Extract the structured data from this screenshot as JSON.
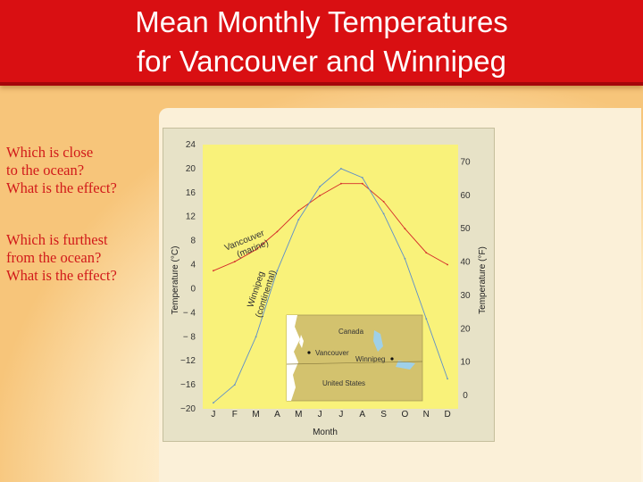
{
  "slide": {
    "title_line1": "Mean Monthly Temperatures",
    "title_line2": "for Vancouver and Winnipeg",
    "question1": [
      "Which is close",
      "to the ocean?",
      "What is the effect?"
    ],
    "question2": [
      "Which is furthest",
      "from the ocean?",
      "What is the effect?"
    ]
  },
  "colors": {
    "title_bg": "#d90f12",
    "question_text": "#d11a1a",
    "plot_bg": "#f9f27a",
    "vancouver": "#d42a2a",
    "winnipeg": "#5e8fca"
  },
  "chart_data": {
    "type": "line",
    "xlabel": "Month",
    "ylabel_left": "Temperature (°C)",
    "ylabel_right": "Temperature (°F)",
    "categories": [
      "J",
      "F",
      "M",
      "A",
      "M",
      "J",
      "J",
      "A",
      "S",
      "O",
      "N",
      "D"
    ],
    "ylim_c": [
      -20,
      24
    ],
    "yticks_c": [
      "24",
      "20",
      "16",
      "12",
      "8",
      "4",
      "0",
      "− 4",
      "− 8",
      "−12",
      "−16",
      "−20"
    ],
    "yticks_f": [
      "70",
      "60",
      "50",
      "40",
      "30",
      "20",
      "10",
      "0"
    ],
    "ytick_values_f": [
      70,
      60,
      50,
      40,
      30,
      20,
      10,
      0
    ],
    "grid": false,
    "series": [
      {
        "name": "Vancouver (marine)",
        "label_lines": [
          "Vancouver",
          "(marine)"
        ],
        "color": "#d42a2a",
        "values": [
          3.0,
          4.5,
          6.5,
          9.5,
          13.0,
          15.5,
          17.5,
          17.5,
          14.5,
          10.0,
          6.0,
          4.0
        ]
      },
      {
        "name": "Winnipeg (continental)",
        "label_lines": [
          "Winnipeg",
          "(continental)"
        ],
        "color": "#5e8fca",
        "values": [
          -19.0,
          -16.0,
          -8.0,
          3.0,
          11.5,
          17.0,
          20.0,
          18.5,
          12.5,
          5.0,
          -5.0,
          -15.0
        ]
      }
    ],
    "inset_map": {
      "labels": {
        "canada": "Canada",
        "us": "United States",
        "vancouver": "Vancouver",
        "winnipeg": "Winnipeg"
      }
    }
  }
}
